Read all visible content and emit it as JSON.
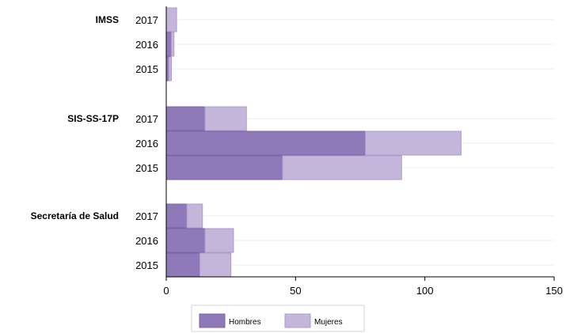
{
  "chart_data": {
    "type": "bar",
    "orientation": "horizontal",
    "stacked": true,
    "title": "",
    "xlabel": "",
    "ylabel": "",
    "xlim": [
      0,
      150
    ],
    "x_ticks": [
      0,
      50,
      100,
      150
    ],
    "grid": true,
    "legend_position": "bottom",
    "colors": {
      "Hombres": "#8f79b9",
      "Mujeres": "#c3b6da",
      "Hombres_stroke": "#7a63a8",
      "Mujeres_stroke": "#ad9ccd"
    },
    "groups": [
      {
        "name": "IMSS",
        "rows": [
          {
            "year": "2017",
            "Hombres": 0,
            "Mujeres": 4
          },
          {
            "year": "2016",
            "Hombres": 2,
            "Mujeres": 1
          },
          {
            "year": "2015",
            "Hombres": 1,
            "Mujeres": 1
          }
        ]
      },
      {
        "name": "SIS-SS-17P",
        "rows": [
          {
            "year": "2017",
            "Hombres": 15,
            "Mujeres": 16
          },
          {
            "year": "2016",
            "Hombres": 77,
            "Mujeres": 37
          },
          {
            "year": "2015",
            "Hombres": 45,
            "Mujeres": 46
          }
        ]
      },
      {
        "name": "Secretaría de Salud",
        "rows": [
          {
            "year": "2017",
            "Hombres": 8,
            "Mujeres": 6
          },
          {
            "year": "2016",
            "Hombres": 15,
            "Mujeres": 11
          },
          {
            "year": "2015",
            "Hombres": 13,
            "Mujeres": 12
          }
        ]
      }
    ],
    "series": [
      {
        "name": "Hombres"
      },
      {
        "name": "Mujeres"
      }
    ]
  }
}
